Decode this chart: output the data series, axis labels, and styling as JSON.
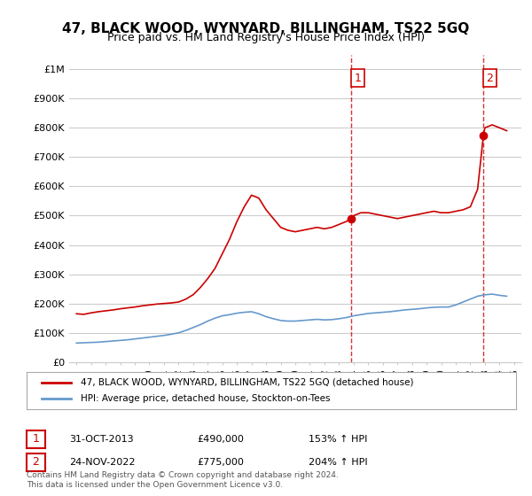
{
  "title": "47, BLACK WOOD, WYNYARD, BILLINGHAM, TS22 5GQ",
  "subtitle": "Price paid vs. HM Land Registry's House Price Index (HPI)",
  "legend_line1": "47, BLACK WOOD, WYNYARD, BILLINGHAM, TS22 5GQ (detached house)",
  "legend_line2": "HPI: Average price, detached house, Stockton-on-Tees",
  "annotation1_label": "1",
  "annotation1_date": "31-OCT-2013",
  "annotation1_price": "£490,000",
  "annotation1_hpi": "153% ↑ HPI",
  "annotation1_year": 2013.83,
  "annotation1_value": 490000,
  "annotation2_label": "2",
  "annotation2_date": "24-NOV-2022",
  "annotation2_price": "£775,000",
  "annotation2_hpi": "204% ↑ HPI",
  "annotation2_year": 2022.9,
  "annotation2_value": 775000,
  "footer": "Contains HM Land Registry data © Crown copyright and database right 2024.\nThis data is licensed under the Open Government Licence v3.0.",
  "red_color": "#cc0000",
  "blue_color": "#6699cc",
  "dashed_color": "#cc0000",
  "background_color": "#ffffff",
  "grid_color": "#cccccc",
  "ylim": [
    0,
    1050000
  ],
  "xlim": [
    1994.5,
    2025.5
  ],
  "yticks": [
    0,
    100000,
    200000,
    300000,
    400000,
    500000,
    600000,
    700000,
    800000,
    900000,
    1000000
  ],
  "ytick_labels": [
    "£0",
    "£100K",
    "£200K",
    "£300K",
    "£400K",
    "£500K",
    "£600K",
    "£700K",
    "£800K",
    "£900K",
    "£1M"
  ],
  "xticks": [
    1995,
    1996,
    1997,
    1998,
    1999,
    2000,
    2001,
    2002,
    2003,
    2004,
    2005,
    2006,
    2007,
    2008,
    2009,
    2010,
    2011,
    2012,
    2013,
    2014,
    2015,
    2016,
    2017,
    2018,
    2019,
    2020,
    2021,
    2022,
    2023,
    2024,
    2025
  ],
  "red_x": [
    1995.0,
    1995.5,
    1996.0,
    1996.5,
    1997.0,
    1997.5,
    1998.0,
    1998.5,
    1999.0,
    1999.5,
    2000.0,
    2000.5,
    2001.0,
    2001.5,
    2002.0,
    2002.5,
    2003.0,
    2003.5,
    2004.0,
    2004.5,
    2005.0,
    2005.5,
    2006.0,
    2006.5,
    2007.0,
    2007.5,
    2008.0,
    2008.5,
    2009.0,
    2009.5,
    2010.0,
    2010.5,
    2011.0,
    2011.5,
    2012.0,
    2012.5,
    2013.0,
    2013.5,
    2013.83,
    2014.0,
    2014.5,
    2015.0,
    2015.5,
    2016.0,
    2016.5,
    2017.0,
    2017.5,
    2018.0,
    2018.5,
    2019.0,
    2019.5,
    2020.0,
    2020.5,
    2021.0,
    2021.5,
    2022.0,
    2022.5,
    2022.9,
    2023.0,
    2023.5,
    2024.0,
    2024.5
  ],
  "red_y": [
    165000,
    163000,
    168000,
    172000,
    175000,
    178000,
    182000,
    185000,
    188000,
    192000,
    195000,
    198000,
    200000,
    202000,
    205000,
    215000,
    230000,
    255000,
    285000,
    320000,
    370000,
    420000,
    480000,
    530000,
    570000,
    560000,
    520000,
    490000,
    460000,
    450000,
    445000,
    450000,
    455000,
    460000,
    455000,
    460000,
    470000,
    480000,
    490000,
    500000,
    510000,
    510000,
    505000,
    500000,
    495000,
    490000,
    495000,
    500000,
    505000,
    510000,
    515000,
    510000,
    510000,
    515000,
    520000,
    530000,
    590000,
    775000,
    800000,
    810000,
    800000,
    790000
  ],
  "blue_x": [
    1995.0,
    1995.5,
    1996.0,
    1996.5,
    1997.0,
    1997.5,
    1998.0,
    1998.5,
    1999.0,
    1999.5,
    2000.0,
    2000.5,
    2001.0,
    2001.5,
    2002.0,
    2002.5,
    2003.0,
    2003.5,
    2004.0,
    2004.5,
    2005.0,
    2005.5,
    2006.0,
    2006.5,
    2007.0,
    2007.5,
    2008.0,
    2008.5,
    2009.0,
    2009.5,
    2010.0,
    2010.5,
    2011.0,
    2011.5,
    2012.0,
    2012.5,
    2013.0,
    2013.5,
    2014.0,
    2014.5,
    2015.0,
    2015.5,
    2016.0,
    2016.5,
    2017.0,
    2017.5,
    2018.0,
    2018.5,
    2019.0,
    2019.5,
    2020.0,
    2020.5,
    2021.0,
    2021.5,
    2022.0,
    2022.5,
    2023.0,
    2023.5,
    2024.0,
    2024.5
  ],
  "blue_y": [
    65000,
    66000,
    67000,
    68000,
    70000,
    72000,
    74000,
    76000,
    79000,
    82000,
    85000,
    88000,
    91000,
    95000,
    100000,
    108000,
    118000,
    128000,
    140000,
    150000,
    158000,
    162000,
    167000,
    170000,
    172000,
    165000,
    155000,
    148000,
    142000,
    140000,
    140000,
    142000,
    144000,
    146000,
    144000,
    145000,
    148000,
    152000,
    158000,
    162000,
    166000,
    168000,
    170000,
    172000,
    175000,
    178000,
    180000,
    182000,
    185000,
    187000,
    188000,
    188000,
    195000,
    205000,
    215000,
    225000,
    230000,
    232000,
    228000,
    225000
  ]
}
